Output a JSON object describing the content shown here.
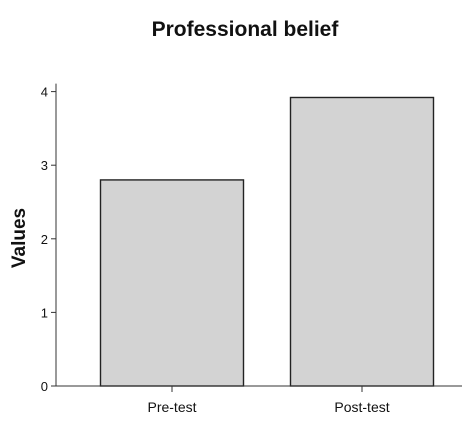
{
  "chart_data": {
    "type": "bar",
    "title": "Professional belief",
    "xlabel": "",
    "ylabel": "Values",
    "categories": [
      "Pre-test",
      "Post-test"
    ],
    "values": [
      2.8,
      3.92
    ],
    "ylim": [
      0,
      4.2
    ],
    "yticks": [
      "0",
      "1",
      "2",
      "3",
      "4"
    ],
    "grid": false,
    "legend": "none",
    "bar_color": "#d3d3d3",
    "bar_edge_color": "#222222"
  }
}
